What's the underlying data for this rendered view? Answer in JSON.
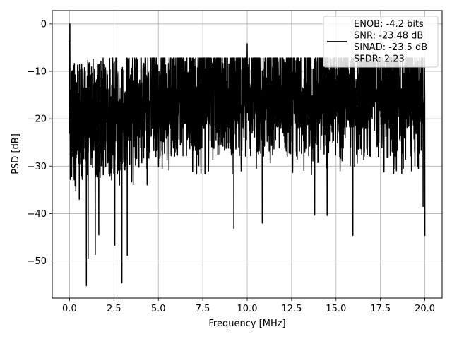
{
  "chart_data": {
    "type": "line",
    "title": "",
    "xlabel": "Frequency [MHz]",
    "ylabel": "PSD [dB]",
    "xlim": [
      -0.97,
      20.97
    ],
    "ylim": [
      -57.8,
      2.8
    ],
    "xticks": [
      0.0,
      2.5,
      5.0,
      7.5,
      10.0,
      12.5,
      15.0,
      17.5,
      20.0
    ],
    "xtick_labels": [
      "0.0",
      "2.5",
      "5.0",
      "7.5",
      "10.0",
      "12.5",
      "15.0",
      "17.5",
      "20.0"
    ],
    "yticks": [
      0,
      -10,
      -20,
      -30,
      -40,
      -50
    ],
    "ytick_labels": [
      "0",
      "−10",
      "−20",
      "−30",
      "−40",
      "−50"
    ],
    "grid": true,
    "legend_placement": "top-right",
    "legend_entries": [
      "ENOB: -4.2 bits",
      "SNR: -23.48 dB",
      "SINAD: -23.5 dB",
      "SFDR: 2.23"
    ],
    "line_color": "#000000",
    "series": [
      {
        "x_range": [
          0,
          20
        ],
        "description": "dense noise spectrum; peak at 0 dB near 0 MHz, upper envelope about -10 to -8 dB, lower envelope about -25 to -35 dB",
        "key_points": [
          {
            "x": 0.0,
            "y": -3.5
          },
          {
            "x": 0.02,
            "y": 0.0
          },
          {
            "x": 0.1,
            "y": -16.0
          },
          {
            "x": 0.15,
            "y": -28.0
          },
          {
            "x": 0.55,
            "y": -37.0
          },
          {
            "x": 0.95,
            "y": -55.2
          },
          {
            "x": 1.05,
            "y": -49.5
          },
          {
            "x": 1.45,
            "y": -48.6
          },
          {
            "x": 1.65,
            "y": -44.5
          },
          {
            "x": 2.55,
            "y": -46.7
          },
          {
            "x": 2.95,
            "y": -54.6
          },
          {
            "x": 3.25,
            "y": -48.8
          },
          {
            "x": 9.25,
            "y": -43.1
          },
          {
            "x": 10.0,
            "y": -4.2
          },
          {
            "x": 10.85,
            "y": -42.0
          },
          {
            "x": 13.8,
            "y": -40.3
          },
          {
            "x": 14.5,
            "y": -40.4
          },
          {
            "x": 15.95,
            "y": -44.6
          },
          {
            "x": 19.9,
            "y": -38.5
          },
          {
            "x": 20.0,
            "y": -44.7
          }
        ]
      }
    ]
  }
}
